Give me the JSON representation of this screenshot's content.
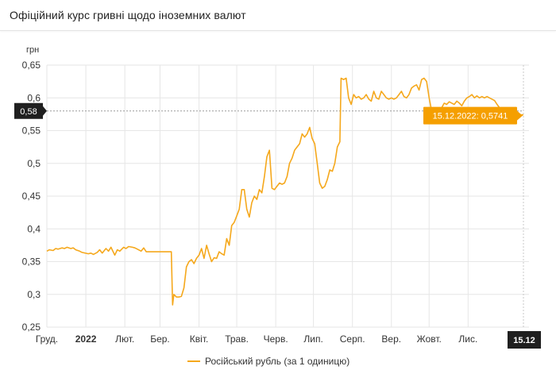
{
  "header": {
    "title": "Офіційний курс гривні щодо іноземних валют"
  },
  "chart_data": {
    "type": "line",
    "ylabel": "грн",
    "ylim": [
      0.25,
      0.65
    ],
    "yticks": [
      0.25,
      0.3,
      0.35,
      0.4,
      0.45,
      0.5,
      0.55,
      0.6,
      0.65
    ],
    "ytick_labels": [
      "0,25",
      "0,3",
      "0,35",
      "0,4",
      "0,45",
      "0,5",
      "0,55",
      "0,6",
      "0,65"
    ],
    "x_range": [
      "2021-12-01",
      "2022-12-15"
    ],
    "xticks": [
      "2021-12-01",
      "2022-01-01",
      "2022-02-01",
      "2022-03-01",
      "2022-04-01",
      "2022-05-01",
      "2022-06-01",
      "2022-07-01",
      "2022-08-01",
      "2022-09-01",
      "2022-10-01",
      "2022-11-01"
    ],
    "xtick_labels": [
      "Груд.",
      "2022",
      "Лют.",
      "Бер.",
      "Квіт.",
      "Трав.",
      "Черв.",
      "Лип.",
      "Серп.",
      "Вер.",
      "Жовт.",
      "Лис."
    ],
    "xtick_bold": [
      false,
      true,
      false,
      false,
      false,
      false,
      false,
      false,
      false,
      false,
      false,
      false
    ],
    "grid": true,
    "line_color": "#f5a81c",
    "crosshair": {
      "y_value": 0.58,
      "y_label": "0,58",
      "x_label": "15.12"
    },
    "tooltip": {
      "text": "15.12.2022: 0,5741",
      "color": "#f59f00"
    },
    "series": [
      {
        "name": "Російський рубль (за 1 одиницю)",
        "points": [
          [
            "2021-12-01",
            0.366
          ],
          [
            "2021-12-03",
            0.368
          ],
          [
            "2021-12-06",
            0.367
          ],
          [
            "2021-12-08",
            0.37
          ],
          [
            "2021-12-10",
            0.369
          ],
          [
            "2021-12-13",
            0.371
          ],
          [
            "2021-12-15",
            0.37
          ],
          [
            "2021-12-17",
            0.372
          ],
          [
            "2021-12-20",
            0.37
          ],
          [
            "2021-12-22",
            0.371
          ],
          [
            "2021-12-24",
            0.368
          ],
          [
            "2021-12-27",
            0.366
          ],
          [
            "2021-12-29",
            0.364
          ],
          [
            "2022-01-03",
            0.362
          ],
          [
            "2022-01-05",
            0.363
          ],
          [
            "2022-01-07",
            0.361
          ],
          [
            "2022-01-10",
            0.364
          ],
          [
            "2022-01-12",
            0.368
          ],
          [
            "2022-01-14",
            0.363
          ],
          [
            "2022-01-17",
            0.37
          ],
          [
            "2022-01-19",
            0.366
          ],
          [
            "2022-01-21",
            0.372
          ],
          [
            "2022-01-24",
            0.36
          ],
          [
            "2022-01-26",
            0.368
          ],
          [
            "2022-01-28",
            0.366
          ],
          [
            "2022-01-31",
            0.372
          ],
          [
            "2022-02-02",
            0.37
          ],
          [
            "2022-02-04",
            0.373
          ],
          [
            "2022-02-07",
            0.372
          ],
          [
            "2022-02-09",
            0.371
          ],
          [
            "2022-02-11",
            0.369
          ],
          [
            "2022-02-14",
            0.366
          ],
          [
            "2022-02-16",
            0.371
          ],
          [
            "2022-02-18",
            0.365
          ],
          [
            "2022-02-21",
            0.365
          ],
          [
            "2022-02-23",
            0.365
          ],
          [
            "2022-02-25",
            0.365
          ],
          [
            "2022-02-28",
            0.365
          ],
          [
            "2022-03-02",
            0.365
          ],
          [
            "2022-03-04",
            0.365
          ],
          [
            "2022-03-07",
            0.365
          ],
          [
            "2022-03-09",
            0.365
          ],
          [
            "2022-03-10",
            0.365
          ],
          [
            "2022-03-11",
            0.284
          ],
          [
            "2022-03-12",
            0.3
          ],
          [
            "2022-03-14",
            0.296
          ],
          [
            "2022-03-16",
            0.296
          ],
          [
            "2022-03-18",
            0.297
          ],
          [
            "2022-03-20",
            0.31
          ],
          [
            "2022-03-22",
            0.342
          ],
          [
            "2022-03-24",
            0.35
          ],
          [
            "2022-03-26",
            0.353
          ],
          [
            "2022-03-28",
            0.347
          ],
          [
            "2022-03-30",
            0.355
          ],
          [
            "2022-04-01",
            0.36
          ],
          [
            "2022-04-03",
            0.37
          ],
          [
            "2022-04-05",
            0.355
          ],
          [
            "2022-04-07",
            0.375
          ],
          [
            "2022-04-09",
            0.362
          ],
          [
            "2022-04-11",
            0.35
          ],
          [
            "2022-04-13",
            0.356
          ],
          [
            "2022-04-15",
            0.355
          ],
          [
            "2022-04-17",
            0.365
          ],
          [
            "2022-04-19",
            0.362
          ],
          [
            "2022-04-21",
            0.36
          ],
          [
            "2022-04-23",
            0.385
          ],
          [
            "2022-04-25",
            0.375
          ],
          [
            "2022-04-27",
            0.405
          ],
          [
            "2022-04-29",
            0.41
          ],
          [
            "2022-05-01",
            0.42
          ],
          [
            "2022-05-03",
            0.43
          ],
          [
            "2022-05-05",
            0.46
          ],
          [
            "2022-05-07",
            0.46
          ],
          [
            "2022-05-09",
            0.43
          ],
          [
            "2022-05-11",
            0.418
          ],
          [
            "2022-05-13",
            0.44
          ],
          [
            "2022-05-15",
            0.45
          ],
          [
            "2022-05-17",
            0.445
          ],
          [
            "2022-05-19",
            0.46
          ],
          [
            "2022-05-21",
            0.455
          ],
          [
            "2022-05-23",
            0.48
          ],
          [
            "2022-05-25",
            0.51
          ],
          [
            "2022-05-27",
            0.52
          ],
          [
            "2022-05-29",
            0.462
          ],
          [
            "2022-05-31",
            0.46
          ],
          [
            "2022-06-02",
            0.465
          ],
          [
            "2022-06-04",
            0.47
          ],
          [
            "2022-06-06",
            0.468
          ],
          [
            "2022-06-08",
            0.47
          ],
          [
            "2022-06-10",
            0.48
          ],
          [
            "2022-06-12",
            0.5
          ],
          [
            "2022-06-14",
            0.508
          ],
          [
            "2022-06-16",
            0.52
          ],
          [
            "2022-06-18",
            0.525
          ],
          [
            "2022-06-20",
            0.53
          ],
          [
            "2022-06-22",
            0.545
          ],
          [
            "2022-06-24",
            0.54
          ],
          [
            "2022-06-26",
            0.545
          ],
          [
            "2022-06-28",
            0.555
          ],
          [
            "2022-06-30",
            0.538
          ],
          [
            "2022-07-02",
            0.53
          ],
          [
            "2022-07-04",
            0.5
          ],
          [
            "2022-07-06",
            0.47
          ],
          [
            "2022-07-08",
            0.462
          ],
          [
            "2022-07-10",
            0.465
          ],
          [
            "2022-07-12",
            0.475
          ],
          [
            "2022-07-14",
            0.49
          ],
          [
            "2022-07-16",
            0.488
          ],
          [
            "2022-07-18",
            0.5
          ],
          [
            "2022-07-20",
            0.525
          ],
          [
            "2022-07-22",
            0.533
          ],
          [
            "2022-07-23",
            0.63
          ],
          [
            "2022-07-25",
            0.628
          ],
          [
            "2022-07-27",
            0.63
          ],
          [
            "2022-07-29",
            0.6
          ],
          [
            "2022-07-31",
            0.59
          ],
          [
            "2022-08-02",
            0.605
          ],
          [
            "2022-08-04",
            0.6
          ],
          [
            "2022-08-06",
            0.602
          ],
          [
            "2022-08-08",
            0.598
          ],
          [
            "2022-08-10",
            0.6
          ],
          [
            "2022-08-12",
            0.605
          ],
          [
            "2022-08-14",
            0.598
          ],
          [
            "2022-08-16",
            0.595
          ],
          [
            "2022-08-18",
            0.61
          ],
          [
            "2022-08-20",
            0.6
          ],
          [
            "2022-08-22",
            0.598
          ],
          [
            "2022-08-24",
            0.61
          ],
          [
            "2022-08-26",
            0.605
          ],
          [
            "2022-08-28",
            0.6
          ],
          [
            "2022-08-30",
            0.598
          ],
          [
            "2022-09-01",
            0.6
          ],
          [
            "2022-09-03",
            0.598
          ],
          [
            "2022-09-05",
            0.6
          ],
          [
            "2022-09-07",
            0.605
          ],
          [
            "2022-09-09",
            0.61
          ],
          [
            "2022-09-11",
            0.602
          ],
          [
            "2022-09-13",
            0.6
          ],
          [
            "2022-09-15",
            0.605
          ],
          [
            "2022-09-17",
            0.615
          ],
          [
            "2022-09-19",
            0.618
          ],
          [
            "2022-09-21",
            0.62
          ],
          [
            "2022-09-23",
            0.612
          ],
          [
            "2022-09-25",
            0.628
          ],
          [
            "2022-09-27",
            0.63
          ],
          [
            "2022-09-29",
            0.625
          ],
          [
            "2022-10-01",
            0.6
          ],
          [
            "2022-10-03",
            0.58
          ],
          [
            "2022-10-05",
            0.575
          ],
          [
            "2022-10-07",
            0.58
          ],
          [
            "2022-10-09",
            0.575
          ],
          [
            "2022-10-11",
            0.585
          ],
          [
            "2022-10-13",
            0.592
          ],
          [
            "2022-10-15",
            0.59
          ],
          [
            "2022-10-17",
            0.594
          ],
          [
            "2022-10-19",
            0.592
          ],
          [
            "2022-10-21",
            0.59
          ],
          [
            "2022-10-23",
            0.595
          ],
          [
            "2022-10-25",
            0.592
          ],
          [
            "2022-10-27",
            0.588
          ],
          [
            "2022-10-29",
            0.595
          ],
          [
            "2022-10-31",
            0.6
          ],
          [
            "2022-11-02",
            0.602
          ],
          [
            "2022-11-04",
            0.605
          ],
          [
            "2022-11-06",
            0.6
          ],
          [
            "2022-11-08",
            0.603
          ],
          [
            "2022-11-10",
            0.6
          ],
          [
            "2022-11-12",
            0.602
          ],
          [
            "2022-11-14",
            0.6
          ],
          [
            "2022-11-16",
            0.602
          ],
          [
            "2022-11-18",
            0.6
          ],
          [
            "2022-11-20",
            0.598
          ],
          [
            "2022-11-22",
            0.596
          ],
          [
            "2022-11-24",
            0.59
          ],
          [
            "2022-11-26",
            0.585
          ],
          [
            "2022-11-28",
            0.58
          ],
          [
            "2022-11-30",
            0.575
          ],
          [
            "2022-12-02",
            0.575
          ],
          [
            "2022-12-05",
            0.576
          ],
          [
            "2022-12-08",
            0.574
          ],
          [
            "2022-12-10",
            0.575
          ],
          [
            "2022-12-13",
            0.574
          ],
          [
            "2022-12-15",
            0.5741
          ]
        ]
      }
    ]
  }
}
